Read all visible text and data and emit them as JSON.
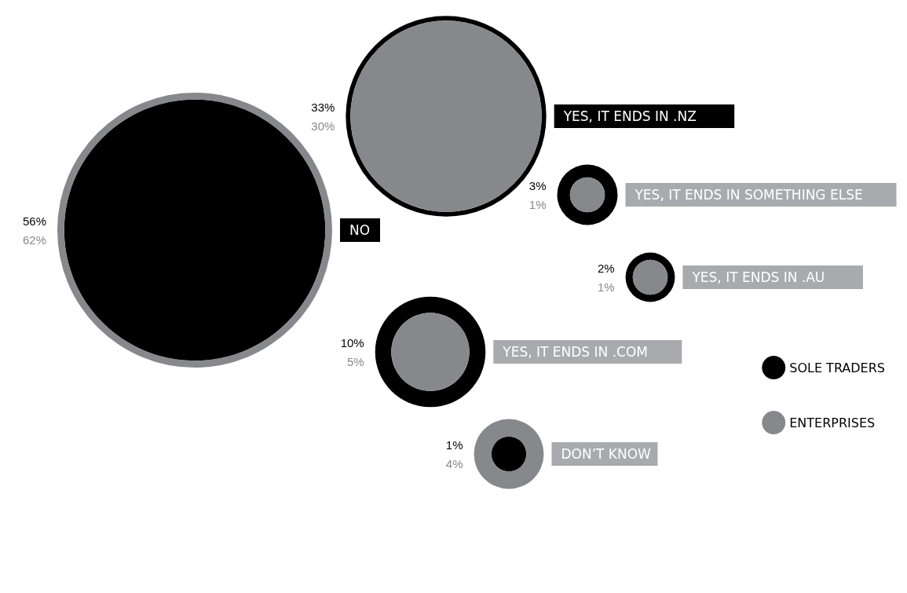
{
  "chart_data": {
    "type": "other",
    "categories": [
      "NO",
      "YES, IT ENDS IN .NZ",
      "YES, IT ENDS IN SOMETHING ELSE",
      "YES, IT ENDS IN .AU",
      "YES, IT ENDS IN .COM",
      "DON’T KNOW"
    ],
    "series": [
      {
        "name": "SOLE TRADERS",
        "color": "#000000",
        "values": [
          56,
          33,
          3,
          2,
          10,
          1
        ],
        "value_labels": [
          "56%",
          "33%",
          "3%",
          "2%",
          "10%",
          "1%"
        ]
      },
      {
        "name": "ENTERPRISES",
        "color": "#87888c",
        "values": [
          62,
          30,
          1,
          1,
          5,
          4
        ],
        "value_labels": [
          "62%",
          "30%",
          "1%",
          "1%",
          "5%",
          "4%"
        ]
      }
    ],
    "legend": "right"
  }
}
